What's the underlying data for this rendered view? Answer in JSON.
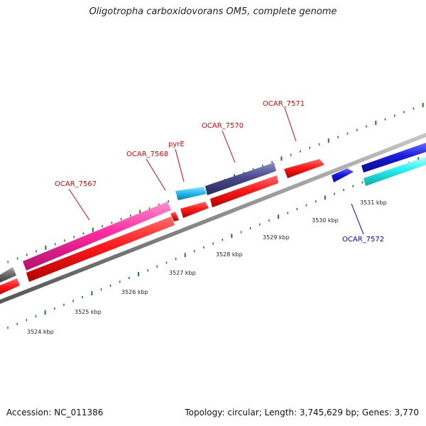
{
  "title": "Oligotropha carboxidovorans OM5, complete genome",
  "footer": {
    "accession": "Accession: NC_011386",
    "summary": "Topology: circular; Length: 3,745,629 bp; Genes: 3,770"
  },
  "ticks": [
    "3524 kbp",
    "3525 kbp",
    "3526 kbp",
    "3527 kbp",
    "3528 kbp",
    "3529 kbp",
    "3530 kbp",
    "3531 kbp"
  ],
  "gene_labels": [
    "OCAR_7567",
    "OCAR_7568",
    "pyrE",
    "OCAR_7570",
    "OCAR_7571",
    "OCAR_7572"
  ],
  "colors": {
    "backbone": "#8a8a8a",
    "forward_cds": "#ff2020",
    "reverse_cds": "#ff2020",
    "gene_7567": "#ff2aa0",
    "gene_pyrE": "#22b8ee",
    "gene_7570": "#4a4a8c",
    "gene_7572": "#1a1adf",
    "gene_cyan": "#22f0f0",
    "gene_grey": "#6e6e6e",
    "tick": "#1e7d1e",
    "label_red": "#e00000",
    "label_blue": "#0000cc"
  }
}
